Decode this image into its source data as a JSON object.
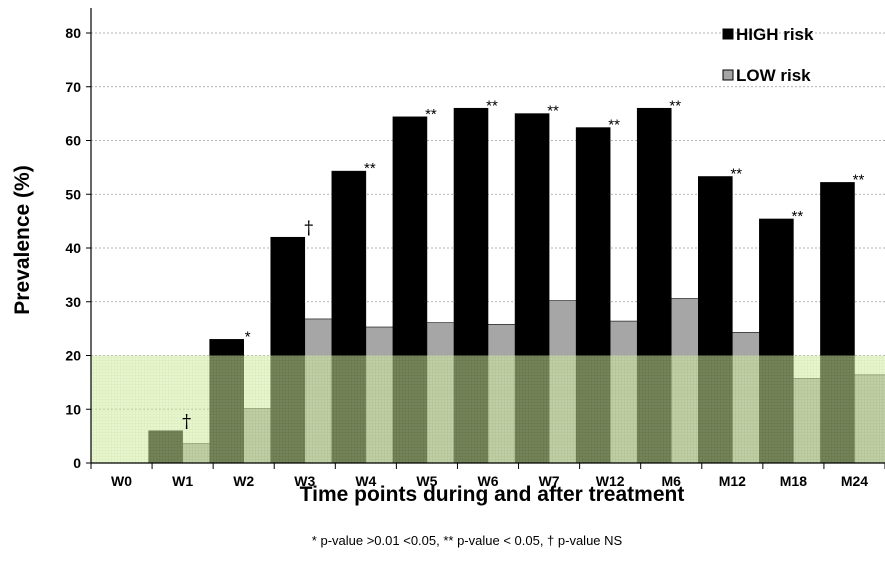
{
  "chart_data": {
    "type": "bar",
    "categories": [
      "W0",
      "W1",
      "W2",
      "W3",
      "W4",
      "W5",
      "W6",
      "W7",
      "W12",
      "M6",
      "M12",
      "M18",
      "M24"
    ],
    "series": [
      {
        "name": "HIGH risk",
        "color": "#000000",
        "values": [
          0,
          6,
          23,
          42,
          54.3,
          64.4,
          66,
          65,
          62.4,
          66,
          53.3,
          45.4,
          52.2
        ]
      },
      {
        "name": "LOW risk",
        "color": "#a6a6a6",
        "values": [
          0,
          3.6,
          10.1,
          26.8,
          25.3,
          26.1,
          25.8,
          30.2,
          26.4,
          30.6,
          24.3,
          15.7,
          16.4
        ]
      }
    ],
    "annotations": [
      "",
      "†",
      "*",
      "†",
      "**",
      "**",
      "**",
      "**",
      "**",
      "**",
      "**",
      "**",
      "**"
    ],
    "ylabel": "Prevalence (%)",
    "xlabel": "Time points during and after treatment",
    "ylim": [
      0,
      80
    ],
    "yticks": [
      0,
      10,
      20,
      30,
      40,
      50,
      60,
      70,
      80
    ],
    "grid": "horizontal dashed",
    "legend_position": "top-right",
    "shaded_band": {
      "from": 0,
      "to": 20,
      "color": "#d8efa8"
    },
    "footnote": "* p-value >0.01 <0.05, ** p-value < 0.05, † p-value NS"
  }
}
